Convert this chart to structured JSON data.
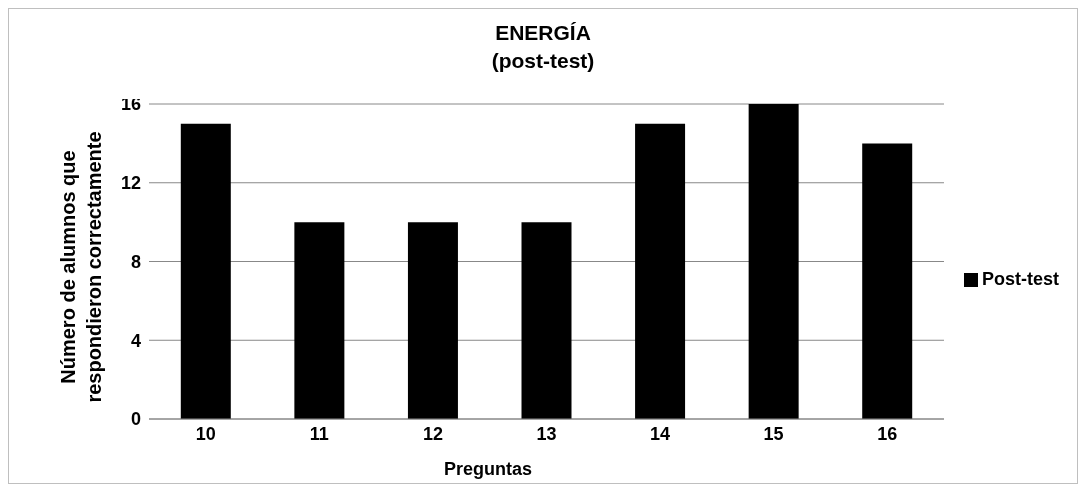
{
  "chart_data": {
    "type": "bar",
    "title": "ENERGÍA\n(post-test)",
    "xlabel": "Preguntas",
    "ylabel": "Número de alumnos que\nrespondieron correctamente",
    "categories": [
      "10",
      "11",
      "12",
      "13",
      "14",
      "15",
      "16"
    ],
    "series": [
      {
        "name": "Post-test",
        "color": "#000000",
        "values": [
          15,
          10,
          10,
          10,
          15,
          16,
          14
        ]
      }
    ],
    "ylim": [
      0,
      16
    ],
    "yticks": [
      0,
      4,
      8,
      12,
      16
    ],
    "grid": "y",
    "legend": "right"
  }
}
